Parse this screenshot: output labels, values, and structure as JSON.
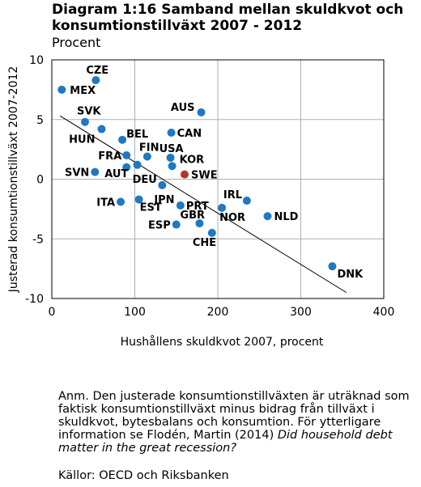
{
  "header": {
    "title": "Diagram 1:16 Samband mellan skuldkvot och konsumtionstillväxt 2007 - 2012",
    "subtitle": "Procent"
  },
  "note": {
    "prefix": "Anm. Den justerade konsumtionstillväxten är uträknad som faktisk konsumtionstillväxt minus bidrag från tillväxt i skuldkvot, bytesbalans och konsumtion. För ytterligare information se Flodén, Martin (2014) ",
    "italic": "Did household debt matter in the great recession?",
    "source": "Källor: OECD och Riksbanken"
  },
  "chart_data": {
    "type": "scatter",
    "title": "Diagram 1:16 Samband mellan skuldkvot och konsumtionstillväxt 2007 - 2012",
    "subtitle": "Procent",
    "xlabel": "Hushållens skuldkvot 2007, procent",
    "ylabel": "Justerad konsumtionstillväxt 2007-2012",
    "xlim": [
      0,
      400
    ],
    "ylim": [
      -10,
      10
    ],
    "xticks": [
      0,
      100,
      200,
      300,
      400
    ],
    "yticks": [
      -10,
      -5,
      0,
      5,
      10
    ],
    "grid": true,
    "colors": {
      "point": "#1f78c1",
      "highlight": "#b8332e",
      "trend": "#000000",
      "grid": "#b0b0b0"
    },
    "trendline": {
      "x": [
        10,
        355
      ],
      "y": [
        5.3,
        -9.5
      ]
    },
    "points": [
      {
        "label": "CZE",
        "x": 53,
        "y": 8.3
      },
      {
        "label": "MEX",
        "x": 12,
        "y": 7.5
      },
      {
        "label": "SVK",
        "x": 40,
        "y": 4.8
      },
      {
        "label": "HUN",
        "x": 60,
        "y": 4.2
      },
      {
        "label": "BEL",
        "x": 85,
        "y": 3.3
      },
      {
        "label": "FRA",
        "x": 90,
        "y": 2.0
      },
      {
        "label": "FIN",
        "x": 115,
        "y": 1.9
      },
      {
        "label": "USA",
        "x": 143,
        "y": 1.8
      },
      {
        "label": "AUS",
        "x": 180,
        "y": 5.6
      },
      {
        "label": "CAN",
        "x": 144,
        "y": 3.9
      },
      {
        "label": "KOR",
        "x": 145,
        "y": 1.1
      },
      {
        "label": "SWE",
        "x": 160,
        "y": 0.4,
        "highlight": true
      },
      {
        "label": "SVN",
        "x": 52,
        "y": 0.6
      },
      {
        "label": "AUT",
        "x": 90,
        "y": 1.0
      },
      {
        "label": "DEU",
        "x": 103,
        "y": 1.2
      },
      {
        "label": "JPN",
        "x": 133,
        "y": -0.5
      },
      {
        "label": "ITA",
        "x": 83,
        "y": -1.9
      },
      {
        "label": "EST",
        "x": 105,
        "y": -1.7
      },
      {
        "label": "PRT",
        "x": 155,
        "y": -2.2
      },
      {
        "label": "IRL",
        "x": 235,
        "y": -1.8
      },
      {
        "label": "NOR",
        "x": 205,
        "y": -2.4
      },
      {
        "label": "NLD",
        "x": 260,
        "y": -3.1
      },
      {
        "label": "GBR",
        "x": 178,
        "y": -3.7
      },
      {
        "label": "ESP",
        "x": 150,
        "y": -3.8
      },
      {
        "label": "CHE",
        "x": 193,
        "y": -4.5
      },
      {
        "label": "DNK",
        "x": 338,
        "y": -7.3
      }
    ]
  }
}
